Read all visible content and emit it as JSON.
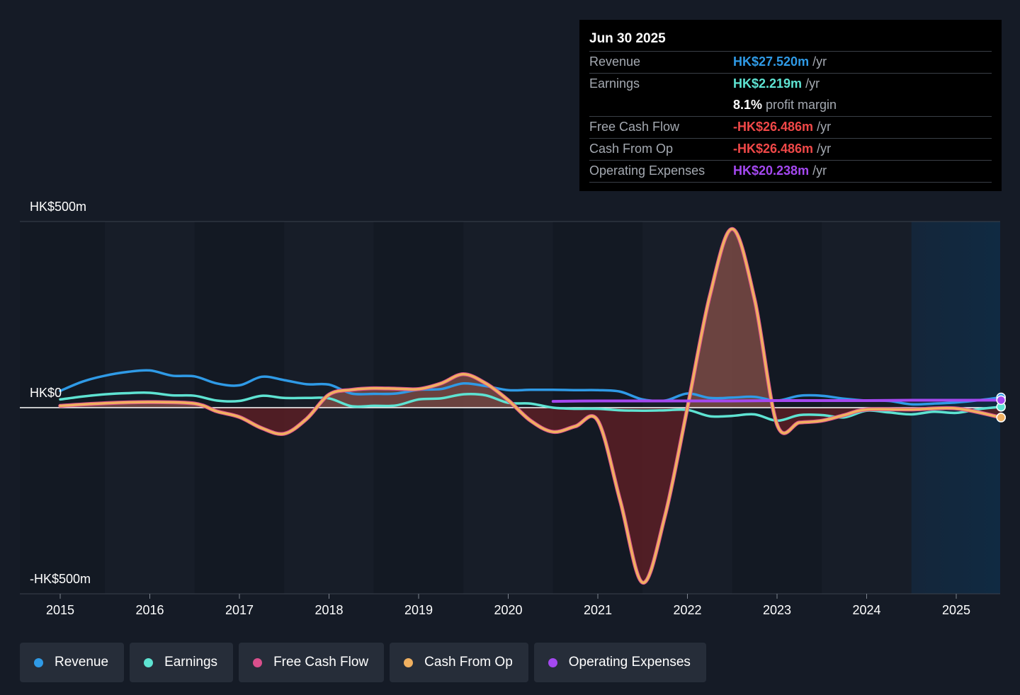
{
  "colors": {
    "revenue": "#2f9ae6",
    "earnings": "#5ee3d2",
    "fcf": "#d94f8c",
    "cfo": "#f0b060",
    "opex": "#a448f0",
    "negative_fill": "#5a1f24",
    "positive_fill": "#7a4a44"
  },
  "tooltip": {
    "date": "Jun 30 2025",
    "rows": [
      {
        "label": "Revenue",
        "value": "HK$27.520m",
        "unit": "/yr",
        "color": "#2f9ae6"
      },
      {
        "label": "Earnings",
        "value": "HK$2.219m",
        "unit": "/yr",
        "color": "#5ee3d2"
      },
      {
        "label": "",
        "value": "8.1%",
        "unit": "profit margin",
        "color": "#ffffff"
      },
      {
        "label": "Free Cash Flow",
        "value": "-HK$26.486m",
        "unit": "/yr",
        "color": "#f04848"
      },
      {
        "label": "Cash From Op",
        "value": "-HK$26.486m",
        "unit": "/yr",
        "color": "#f04848"
      },
      {
        "label": "Operating Expenses",
        "value": "HK$20.238m",
        "unit": "/yr",
        "color": "#a448f0"
      }
    ]
  },
  "legend": [
    {
      "label": "Revenue",
      "color": "#2f9ae6"
    },
    {
      "label": "Earnings",
      "color": "#5ee3d2"
    },
    {
      "label": "Free Cash Flow",
      "color": "#d94f8c"
    },
    {
      "label": "Cash From Op",
      "color": "#f0b060"
    },
    {
      "label": "Operating Expenses",
      "color": "#a448f0"
    }
  ],
  "chart_data": {
    "type": "line",
    "y_top_label": "HK$500m",
    "y_zero_label": "HK$0",
    "y_bottom_label": "-HK$500m",
    "ylim": [
      -500,
      500
    ],
    "xlim": [
      2014.55,
      2025.5
    ],
    "x_ticks": [
      {
        "value": 2015,
        "label": "2015"
      },
      {
        "value": 2016,
        "label": "2016"
      },
      {
        "value": 2017,
        "label": "2017"
      },
      {
        "value": 2018,
        "label": "2018"
      },
      {
        "value": 2019,
        "label": "2019"
      },
      {
        "value": 2020,
        "label": "2020"
      },
      {
        "value": 2021,
        "label": "2021"
      },
      {
        "value": 2022,
        "label": "2022"
      },
      {
        "value": 2023,
        "label": "2023"
      },
      {
        "value": 2024,
        "label": "2024"
      },
      {
        "value": 2025,
        "label": "2025"
      }
    ],
    "forecast_start": 2024.5,
    "series": [
      {
        "name": "Revenue",
        "points": [
          [
            2015,
            45
          ],
          [
            2015.25,
            70
          ],
          [
            2015.5,
            86
          ],
          [
            2015.75,
            96
          ],
          [
            2016,
            100
          ],
          [
            2016.25,
            86
          ],
          [
            2016.5,
            84
          ],
          [
            2016.75,
            65
          ],
          [
            2017,
            60
          ],
          [
            2017.25,
            83
          ],
          [
            2017.5,
            74
          ],
          [
            2017.75,
            63
          ],
          [
            2018,
            62
          ],
          [
            2018.25,
            38
          ],
          [
            2018.5,
            37
          ],
          [
            2018.75,
            38
          ],
          [
            2019,
            48
          ],
          [
            2019.25,
            50
          ],
          [
            2019.5,
            65
          ],
          [
            2019.75,
            58
          ],
          [
            2020,
            47
          ],
          [
            2020.25,
            48
          ],
          [
            2020.5,
            48
          ],
          [
            2020.75,
            47
          ],
          [
            2021,
            47
          ],
          [
            2021.25,
            43
          ],
          [
            2021.5,
            22
          ],
          [
            2021.75,
            19
          ],
          [
            2022,
            38
          ],
          [
            2022.25,
            26
          ],
          [
            2022.5,
            27
          ],
          [
            2022.75,
            29
          ],
          [
            2023,
            19
          ],
          [
            2023.25,
            32
          ],
          [
            2023.5,
            32
          ],
          [
            2023.75,
            24
          ],
          [
            2024,
            19
          ],
          [
            2024.25,
            18
          ],
          [
            2024.5,
            9
          ],
          [
            2024.75,
            11
          ],
          [
            2025,
            14
          ],
          [
            2025.25,
            20
          ],
          [
            2025.5,
            27.52
          ]
        ]
      },
      {
        "name": "Earnings",
        "points": [
          [
            2015,
            22
          ],
          [
            2015.25,
            30
          ],
          [
            2015.5,
            36
          ],
          [
            2015.75,
            39
          ],
          [
            2016,
            40
          ],
          [
            2016.25,
            33
          ],
          [
            2016.5,
            32
          ],
          [
            2016.75,
            19
          ],
          [
            2017,
            18
          ],
          [
            2017.25,
            32
          ],
          [
            2017.5,
            26
          ],
          [
            2017.75,
            26
          ],
          [
            2018,
            25
          ],
          [
            2018.25,
            4
          ],
          [
            2018.5,
            5
          ],
          [
            2018.75,
            6
          ],
          [
            2019,
            22
          ],
          [
            2019.25,
            25
          ],
          [
            2019.5,
            36
          ],
          [
            2019.75,
            33
          ],
          [
            2020,
            13
          ],
          [
            2020.25,
            11
          ],
          [
            2020.5,
            0
          ],
          [
            2020.75,
            -3
          ],
          [
            2021,
            -3
          ],
          [
            2021.25,
            -7
          ],
          [
            2021.5,
            -8
          ],
          [
            2021.75,
            -7
          ],
          [
            2022,
            -6
          ],
          [
            2022.25,
            -23
          ],
          [
            2022.5,
            -22
          ],
          [
            2022.75,
            -18
          ],
          [
            2023,
            -35
          ],
          [
            2023.25,
            -20
          ],
          [
            2023.5,
            -20
          ],
          [
            2023.75,
            -26
          ],
          [
            2024,
            -8
          ],
          [
            2024.25,
            -13
          ],
          [
            2024.5,
            -18
          ],
          [
            2024.75,
            -11
          ],
          [
            2025,
            -14
          ],
          [
            2025.25,
            -4
          ],
          [
            2025.5,
            2.219
          ]
        ]
      },
      {
        "name": "Cash From Op",
        "points": [
          [
            2015,
            5
          ],
          [
            2015.5,
            12
          ],
          [
            2016,
            15
          ],
          [
            2016.5,
            11
          ],
          [
            2016.75,
            -10
          ],
          [
            2017,
            -25
          ],
          [
            2017.25,
            -55
          ],
          [
            2017.5,
            -70
          ],
          [
            2017.75,
            -30
          ],
          [
            2018,
            35
          ],
          [
            2018.25,
            48
          ],
          [
            2018.5,
            52
          ],
          [
            2018.75,
            51
          ],
          [
            2019,
            50
          ],
          [
            2019.25,
            65
          ],
          [
            2019.5,
            90
          ],
          [
            2019.75,
            65
          ],
          [
            2020,
            20
          ],
          [
            2020.25,
            -35
          ],
          [
            2020.5,
            -65
          ],
          [
            2020.75,
            -50
          ],
          [
            2021,
            -35
          ],
          [
            2021.25,
            -250
          ],
          [
            2021.5,
            -470
          ],
          [
            2021.75,
            -290
          ],
          [
            2022,
            0
          ],
          [
            2022.25,
            300
          ],
          [
            2022.5,
            480
          ],
          [
            2022.75,
            290
          ],
          [
            2023,
            -45
          ],
          [
            2023.25,
            -40
          ],
          [
            2023.5,
            -35
          ],
          [
            2023.75,
            -20
          ],
          [
            2024,
            -5
          ],
          [
            2024.5,
            -5
          ],
          [
            2025,
            -2
          ],
          [
            2025.5,
            -26.486
          ]
        ]
      },
      {
        "name": "Free Cash Flow",
        "points": [
          [
            2015,
            5
          ],
          [
            2015.5,
            12
          ],
          [
            2016,
            15
          ],
          [
            2016.5,
            11
          ],
          [
            2016.75,
            -10
          ],
          [
            2017,
            -25
          ],
          [
            2017.25,
            -55
          ],
          [
            2017.5,
            -70
          ],
          [
            2017.75,
            -30
          ],
          [
            2018,
            35
          ],
          [
            2018.25,
            48
          ],
          [
            2018.5,
            52
          ],
          [
            2018.75,
            51
          ],
          [
            2019,
            50
          ],
          [
            2019.25,
            65
          ],
          [
            2019.5,
            90
          ],
          [
            2019.75,
            65
          ],
          [
            2020,
            20
          ],
          [
            2020.25,
            -35
          ],
          [
            2020.5,
            -65
          ],
          [
            2020.75,
            -50
          ],
          [
            2021,
            -35
          ],
          [
            2021.25,
            -250
          ],
          [
            2021.5,
            -470
          ],
          [
            2021.75,
            -290
          ],
          [
            2022,
            0
          ],
          [
            2022.25,
            300
          ],
          [
            2022.5,
            480
          ],
          [
            2022.75,
            290
          ],
          [
            2023,
            -45
          ],
          [
            2023.25,
            -40
          ],
          [
            2023.5,
            -35
          ],
          [
            2023.75,
            -20
          ],
          [
            2024,
            -5
          ],
          [
            2024.5,
            -5
          ],
          [
            2025,
            -2
          ],
          [
            2025.5,
            -26.486
          ]
        ]
      },
      {
        "name": "Operating Expenses",
        "points": [
          [
            2020.5,
            17
          ],
          [
            2021,
            18
          ],
          [
            2021.5,
            18
          ],
          [
            2022,
            18
          ],
          [
            2022.5,
            18
          ],
          [
            2023,
            19
          ],
          [
            2023.5,
            19
          ],
          [
            2024,
            19
          ],
          [
            2024.5,
            20
          ],
          [
            2025,
            20
          ],
          [
            2025.5,
            20.238
          ]
        ]
      }
    ]
  }
}
